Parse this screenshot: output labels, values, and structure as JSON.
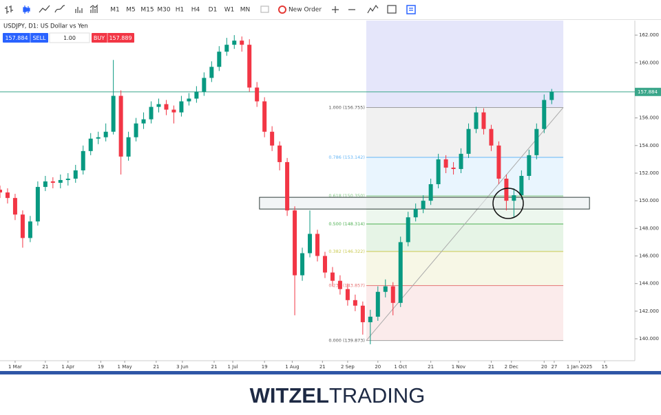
{
  "toolbar": {
    "timeframes": [
      "M1",
      "M5",
      "M15",
      "M30",
      "H1",
      "H4",
      "D1",
      "W1",
      "MN"
    ],
    "new_order": "New Order"
  },
  "header": {
    "symbol": "USDJPY, D1: US Dollar vs Yen"
  },
  "trade_panel": {
    "sell_price": 157.884,
    "sell": "SELL",
    "volume": "1.00",
    "buy": "BUY",
    "buy_price": 157.889
  },
  "chart_data": {
    "type": "candlestick",
    "xlim": [
      0,
      252
    ],
    "xticks": [
      {
        "value": 6,
        "label": "1 Mar"
      },
      {
        "value": 18,
        "label": "21"
      },
      {
        "value": 27,
        "label": "1 Apr"
      },
      {
        "value": 40,
        "label": "19"
      },
      {
        "value": 49.5,
        "label": "1 May"
      },
      {
        "value": 62,
        "label": "21"
      },
      {
        "value": 72.4,
        "label": "3 Jun"
      },
      {
        "value": 85,
        "label": "21"
      },
      {
        "value": 92.4,
        "label": "1 Jul"
      },
      {
        "value": 105,
        "label": "19"
      },
      {
        "value": 116,
        "label": "1 Aug"
      },
      {
        "value": 128,
        "label": "21"
      },
      {
        "value": 138,
        "label": "2 Sep"
      },
      {
        "value": 150,
        "label": "20"
      },
      {
        "value": 159,
        "label": "1 Oct"
      },
      {
        "value": 171,
        "label": "21"
      },
      {
        "value": 182,
        "label": "1 Nov"
      },
      {
        "value": 195,
        "label": "21"
      },
      {
        "value": 203,
        "label": "2 Dec"
      },
      {
        "value": 216,
        "label": "20"
      },
      {
        "value": 220,
        "label": "27"
      },
      {
        "value": 230,
        "label": "1 Jan 2025"
      },
      {
        "value": 240,
        "label": "15"
      }
    ],
    "ylim": [
      138.41,
      163.05
    ],
    "yticks": [
      {
        "value": 140,
        "label": "140.000"
      },
      {
        "value": 142,
        "label": "142.000"
      },
      {
        "value": 144,
        "label": "144.000"
      },
      {
        "value": 146,
        "label": "146.000"
      },
      {
        "value": 148,
        "label": "148.000"
      },
      {
        "value": 150,
        "label": "150.000"
      },
      {
        "value": 152,
        "label": "152.000"
      },
      {
        "value": 154,
        "label": "154.000"
      },
      {
        "value": 156,
        "label": "156.000"
      },
      {
        "value": 158,
        "label": "158.000"
      },
      {
        "value": 160,
        "label": "160.000"
      },
      {
        "value": 162,
        "label": "162.000"
      }
    ],
    "up_color": "#089981",
    "down_color": "#f23645",
    "x": [
      0,
      3,
      6,
      9,
      12,
      15,
      18,
      21,
      24,
      27,
      30,
      33,
      36,
      39,
      42,
      45,
      48,
      51,
      54,
      57,
      60,
      63,
      66,
      69,
      72,
      75,
      78,
      81,
      84,
      87,
      90,
      93,
      96,
      99,
      102,
      105,
      108,
      111,
      114,
      117,
      120,
      123,
      126,
      129,
      132,
      135,
      138,
      141,
      144,
      147,
      150,
      153,
      156,
      159,
      162,
      165,
      168,
      171,
      174,
      177,
      180,
      183,
      186,
      189,
      192,
      195,
      198,
      201,
      204,
      207,
      210,
      213,
      216,
      219
    ],
    "open": [
      150.8,
      150.6,
      150.2,
      149.0,
      147.3,
      148.5,
      151.0,
      151.4,
      151.3,
      151.5,
      151.6,
      152.2,
      153.6,
      154.5,
      154.6,
      155.0,
      157.6,
      153.2,
      154.6,
      155.6,
      155.9,
      156.8,
      157.0,
      156.6,
      156.4,
      157.2,
      157.4,
      157.9,
      158.9,
      159.7,
      160.8,
      161.3,
      161.6,
      161.3,
      158.2,
      157.2,
      155.0,
      154.0,
      152.8,
      149.3,
      144.6,
      146.2,
      147.6,
      146.0,
      144.8,
      144.2,
      143.6,
      142.8,
      142.4,
      141.2,
      141.6,
      143.4,
      143.8,
      142.6,
      147.0,
      148.8,
      149.4,
      150.0,
      151.2,
      153.0,
      152.4,
      152.3,
      153.4,
      155.2,
      156.4,
      155.2,
      154.0,
      151.6,
      150.0,
      150.4,
      151.8,
      153.3,
      155.2,
      157.3
    ],
    "high": [
      151.1,
      150.9,
      150.5,
      149.3,
      148.9,
      151.4,
      151.8,
      151.7,
      151.9,
      152.0,
      152.6,
      154.0,
      154.9,
      155.0,
      155.6,
      160.2,
      158.0,
      155.0,
      156.0,
      156.4,
      157.2,
      157.4,
      157.3,
      156.9,
      157.6,
      157.8,
      158.3,
      159.3,
      160.1,
      161.2,
      161.8,
      162.0,
      161.9,
      161.7,
      158.6,
      157.5,
      155.4,
      154.3,
      153.1,
      149.6,
      146.6,
      149.3,
      147.9,
      146.3,
      145.2,
      144.6,
      144.0,
      143.2,
      142.7,
      142.1,
      143.8,
      144.3,
      144.1,
      147.4,
      149.2,
      149.8,
      150.4,
      151.6,
      153.4,
      153.3,
      152.8,
      153.8,
      155.6,
      156.8,
      156.7,
      155.5,
      154.3,
      151.9,
      150.9,
      152.2,
      153.7,
      155.6,
      157.7,
      158.1
    ],
    "low": [
      150.2,
      149.8,
      148.6,
      146.6,
      147.0,
      148.2,
      150.7,
      150.9,
      150.9,
      151.1,
      151.3,
      151.9,
      153.3,
      154.1,
      154.3,
      154.8,
      151.9,
      152.9,
      154.3,
      155.2,
      155.6,
      156.4,
      156.2,
      155.6,
      156.1,
      156.9,
      157.1,
      157.6,
      158.6,
      159.4,
      160.5,
      161.0,
      160.8,
      157.9,
      156.8,
      154.6,
      153.6,
      152.2,
      148.9,
      141.7,
      144.2,
      145.9,
      145.6,
      144.4,
      143.8,
      143.2,
      142.4,
      142.0,
      140.3,
      139.6,
      141.3,
      143.0,
      141.7,
      142.3,
      146.7,
      148.5,
      149.1,
      149.7,
      150.9,
      152.0,
      151.9,
      152.0,
      153.1,
      154.9,
      154.8,
      153.6,
      151.2,
      149.3,
      148.8,
      150.1,
      151.5,
      153.0,
      154.9,
      157.0
    ],
    "close": [
      150.6,
      150.2,
      149.0,
      147.3,
      148.5,
      151.0,
      151.4,
      151.3,
      151.5,
      151.6,
      152.2,
      153.6,
      154.5,
      154.6,
      155.0,
      157.6,
      153.2,
      154.6,
      155.6,
      155.9,
      156.8,
      157.0,
      156.6,
      156.4,
      157.2,
      157.4,
      157.9,
      158.9,
      159.7,
      160.8,
      161.3,
      161.6,
      161.3,
      158.2,
      157.2,
      155.0,
      154.0,
      152.8,
      149.3,
      144.6,
      146.2,
      147.6,
      146.0,
      144.8,
      144.2,
      143.6,
      142.8,
      142.4,
      141.2,
      141.6,
      143.4,
      143.8,
      142.6,
      147.0,
      148.8,
      149.4,
      150.0,
      151.2,
      153.0,
      152.4,
      152.3,
      153.4,
      155.2,
      156.4,
      155.2,
      154.0,
      151.6,
      150.0,
      150.4,
      151.8,
      153.3,
      155.2,
      157.3,
      157.9
    ],
    "current_price": 157.884,
    "current_color": "#3aa68a",
    "fibonacci": {
      "x": [
        145.4,
        223.6
      ],
      "levels": [
        {
          "label": "1.000 (156.755)",
          "value": 156.755,
          "color": "#9e9e9e"
        },
        {
          "label": "0.786 (153.142)",
          "value": 153.142,
          "color": "#64b5f6"
        },
        {
          "label": "0.618 (150.350)",
          "value": 150.35,
          "color": "#81c784"
        },
        {
          "label": "0.500 (148.314)",
          "value": 148.314,
          "color": "#4caf50"
        },
        {
          "label": "0.382 (146.322)",
          "value": 146.322,
          "color": "#c9c94f"
        },
        {
          "label": "0.236 (143.857)",
          "value": 143.857,
          "color": "#e57373"
        },
        {
          "label": "0.000 (139.873)",
          "value": 139.873,
          "color": "#9e9e9e"
        }
      ]
    },
    "zone": {
      "x": [
        103,
        234
      ],
      "y": [
        149.4,
        150.25
      ]
    }
  },
  "footer": {
    "brand_bold": "WITZEL",
    "brand_light": "TRADING"
  }
}
